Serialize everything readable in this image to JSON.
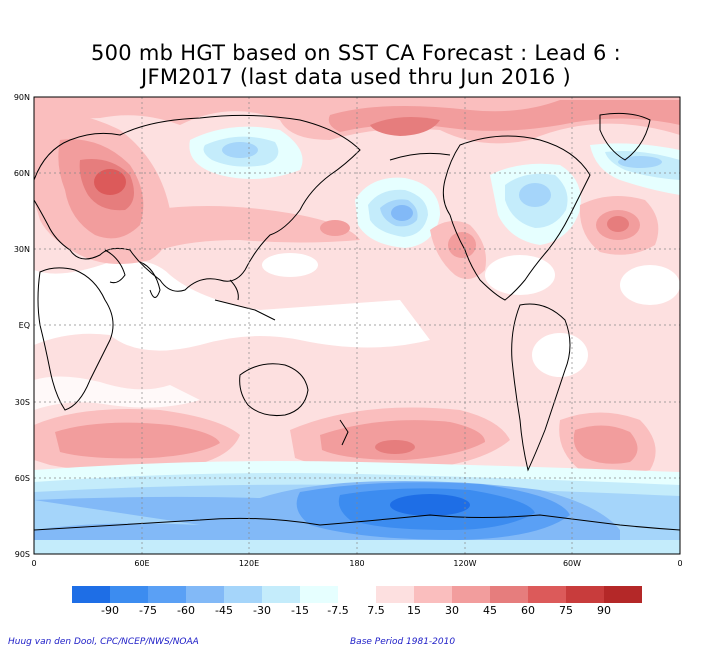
{
  "title": {
    "line1": "500 mb HGT based on SST CA Forecast : Lead 6 :",
    "line2": "JFM2017 (last data used thru Jun 2016 )"
  },
  "map": {
    "lat_labels": [
      "90N",
      "60N",
      "30N",
      "EQ",
      "30S",
      "60S",
      "90S"
    ],
    "lon_labels": [
      "0",
      "60E",
      "120E",
      "180",
      "120W",
      "60W",
      "0"
    ]
  },
  "legend": {
    "labels": [
      "-90",
      "-75",
      "-60",
      "-45",
      "-30",
      "-15",
      "-7.5",
      "7.5",
      "15",
      "30",
      "45",
      "60",
      "75",
      "90"
    ],
    "colors": [
      "#1e6ee6",
      "#3c8cf0",
      "#5aa0f5",
      "#82b9f7",
      "#a5d5fa",
      "#c4ecfb",
      "#e6ffff",
      "#ffffff",
      "#fde0e0",
      "#fabebe",
      "#f29d9d",
      "#e67d7d",
      "#dc5a5a",
      "#c83c3c",
      "#b42828"
    ]
  },
  "credits": {
    "left": "Huug van den Dool, CPC/NCEP/NWS/NOAA",
    "right": "Base Period 1981-2010"
  }
}
